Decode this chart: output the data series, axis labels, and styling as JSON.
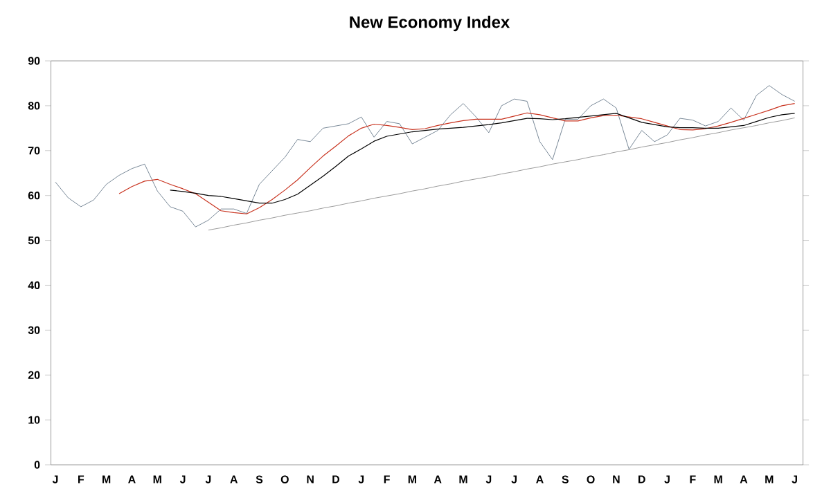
{
  "chart_data": {
    "type": "line",
    "title": "New Economy Index",
    "ylim": [
      0,
      90
    ],
    "yticks": [
      0,
      10,
      20,
      30,
      40,
      50,
      60,
      70,
      80,
      90
    ],
    "categories": [
      "J",
      null,
      "F",
      null,
      "M",
      null,
      "A",
      null,
      "M",
      null,
      "J",
      null,
      "J",
      null,
      "A",
      null,
      "S",
      null,
      "O",
      null,
      "N",
      null,
      "D",
      null,
      "J",
      null,
      "F",
      null,
      "M",
      null,
      "A",
      null,
      "M",
      null,
      "J",
      null,
      "J",
      null,
      "A",
      null,
      "S",
      null,
      "O",
      null,
      "N",
      null,
      "D",
      null,
      "J",
      null,
      "F",
      null,
      "M",
      null,
      "A",
      null,
      "M",
      null,
      "J"
    ],
    "marker": "none",
    "line_style": "solid",
    "series": [
      {
        "color": "#56697c",
        "values": [
          63,
          59.5,
          57.5,
          59,
          62.5,
          64.5,
          66,
          67,
          61,
          57.5,
          56.5,
          53,
          54.5,
          57,
          57,
          56,
          62.5,
          65.5,
          68.5,
          72.5,
          72,
          75,
          75.5,
          76,
          77.5,
          73,
          76.5,
          76,
          71.5,
          73,
          74.5,
          78,
          80.5,
          77.5,
          74,
          80,
          81.5,
          81,
          72,
          68,
          77,
          77,
          80,
          81.5,
          79.5,
          70.3,
          74.5,
          72,
          73.5,
          77.2,
          76.8,
          75.5,
          76.5,
          79.5,
          76.8,
          82.3,
          84.5,
          82.5,
          81
        ]
      },
      {
        "color": "#c8321e",
        "values": [
          null,
          null,
          null,
          null,
          null,
          60.4,
          62,
          63.2,
          63.6,
          62.5,
          61.5,
          60.4,
          58.5,
          56.6,
          56.2,
          55.9,
          57.3,
          59.1,
          61.2,
          63.5,
          66.2,
          68.8,
          71,
          73.3,
          75,
          75.9,
          75.6,
          75.2,
          74.7,
          74.9,
          75.6,
          76.2,
          76.7,
          77,
          77,
          77,
          77.7,
          78.4,
          78,
          77.3,
          76.6,
          76.6,
          77.3,
          77.8,
          77.9,
          77.5,
          77.1,
          76.3,
          75.5,
          74.7,
          74.6,
          74.9,
          75.5,
          76.3,
          77.2,
          78.1,
          79,
          80,
          80.5
        ]
      },
      {
        "color": "#000000",
        "values": [
          null,
          null,
          null,
          null,
          null,
          null,
          null,
          null,
          null,
          61.2,
          60.9,
          60.5,
          60,
          59.8,
          59.3,
          58.8,
          58.3,
          58.3,
          59.1,
          60.3,
          62.3,
          64.3,
          66.5,
          68.8,
          70.4,
          72.1,
          73.2,
          73.7,
          74.2,
          74.5,
          74.8,
          75,
          75.2,
          75.5,
          75.8,
          76.2,
          76.7,
          77.2,
          77.1,
          76.9,
          77.1,
          77.4,
          77.7,
          78,
          78.3,
          77.3,
          76.3,
          75.8,
          75.3,
          75.1,
          75.1,
          75,
          75,
          75.3,
          75.6,
          76.5,
          77.4,
          78,
          78.3
        ]
      },
      {
        "color": "#808080",
        "values": [
          null,
          null,
          null,
          null,
          null,
          null,
          null,
          null,
          null,
          null,
          null,
          null,
          52.3,
          52.8,
          53.4,
          53.9,
          54.5,
          55.0,
          55.6,
          56.1,
          56.6,
          57.2,
          57.7,
          58.3,
          58.8,
          59.4,
          59.9,
          60.4,
          61.0,
          61.5,
          62.1,
          62.6,
          63.2,
          63.7,
          64.2,
          64.8,
          65.3,
          65.9,
          66.4,
          67.0,
          67.5,
          68.0,
          68.6,
          69.1,
          69.7,
          70.2,
          70.8,
          71.3,
          71.8,
          72.4,
          72.9,
          73.5,
          74.0,
          74.6,
          75.1,
          75.6,
          76.2,
          76.7,
          77.3
        ]
      }
    ]
  }
}
